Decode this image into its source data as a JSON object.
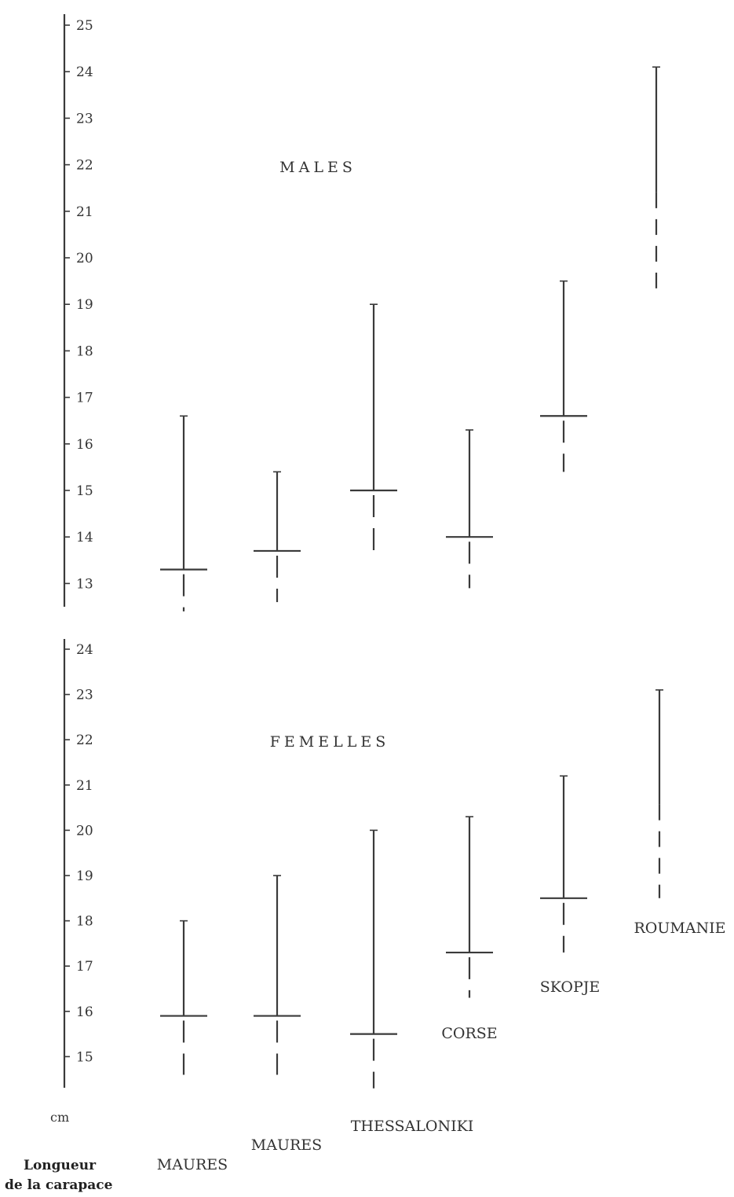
{
  "chart_data": [
    {
      "type": "range",
      "title": "MALES",
      "ylim": [
        12.4,
        25.3
      ],
      "yticks": [
        13,
        14,
        15,
        16,
        17,
        18,
        19,
        20,
        21,
        22,
        23,
        24,
        25
      ],
      "series": [
        {
          "min": 12.4,
          "mean": 13.3,
          "max": 16.6
        },
        {
          "min": 12.6,
          "mean": 13.7,
          "max": 15.4
        },
        {
          "min": 13.7,
          "mean": 15.0,
          "max": 19.0
        },
        {
          "min": 12.9,
          "mean": 14.0,
          "max": 16.3
        },
        {
          "min": 15.4,
          "mean": 16.6,
          "max": 19.5
        },
        {
          "min": 19.2,
          "mean": null,
          "max": 24.1
        }
      ]
    },
    {
      "type": "range",
      "title": "FEMELLES",
      "ylim": [
        14.5,
        24.4
      ],
      "yticks": [
        15,
        16,
        17,
        18,
        19,
        20,
        21,
        22,
        23,
        24
      ],
      "series": [
        {
          "name": "MAURES",
          "min": 14.6,
          "mean": 15.9,
          "max": 18.0
        },
        {
          "name": "MAURES",
          "min": 14.6,
          "mean": 15.9,
          "max": 19.0
        },
        {
          "name": "THESSALONIKI",
          "min": 14.3,
          "mean": 15.5,
          "max": 20.0
        },
        {
          "name": "CORSE",
          "min": 16.3,
          "mean": 17.3,
          "max": 20.3
        },
        {
          "name": "SKOPJE",
          "min": 17.3,
          "mean": 18.5,
          "max": 21.2
        },
        {
          "name": "ROUMANIE",
          "min": 18.5,
          "mean": null,
          "max": 23.1
        }
      ]
    }
  ],
  "axis": {
    "unit": "cm",
    "title_line1": "Longueur",
    "title_line2": "de la carapace"
  }
}
